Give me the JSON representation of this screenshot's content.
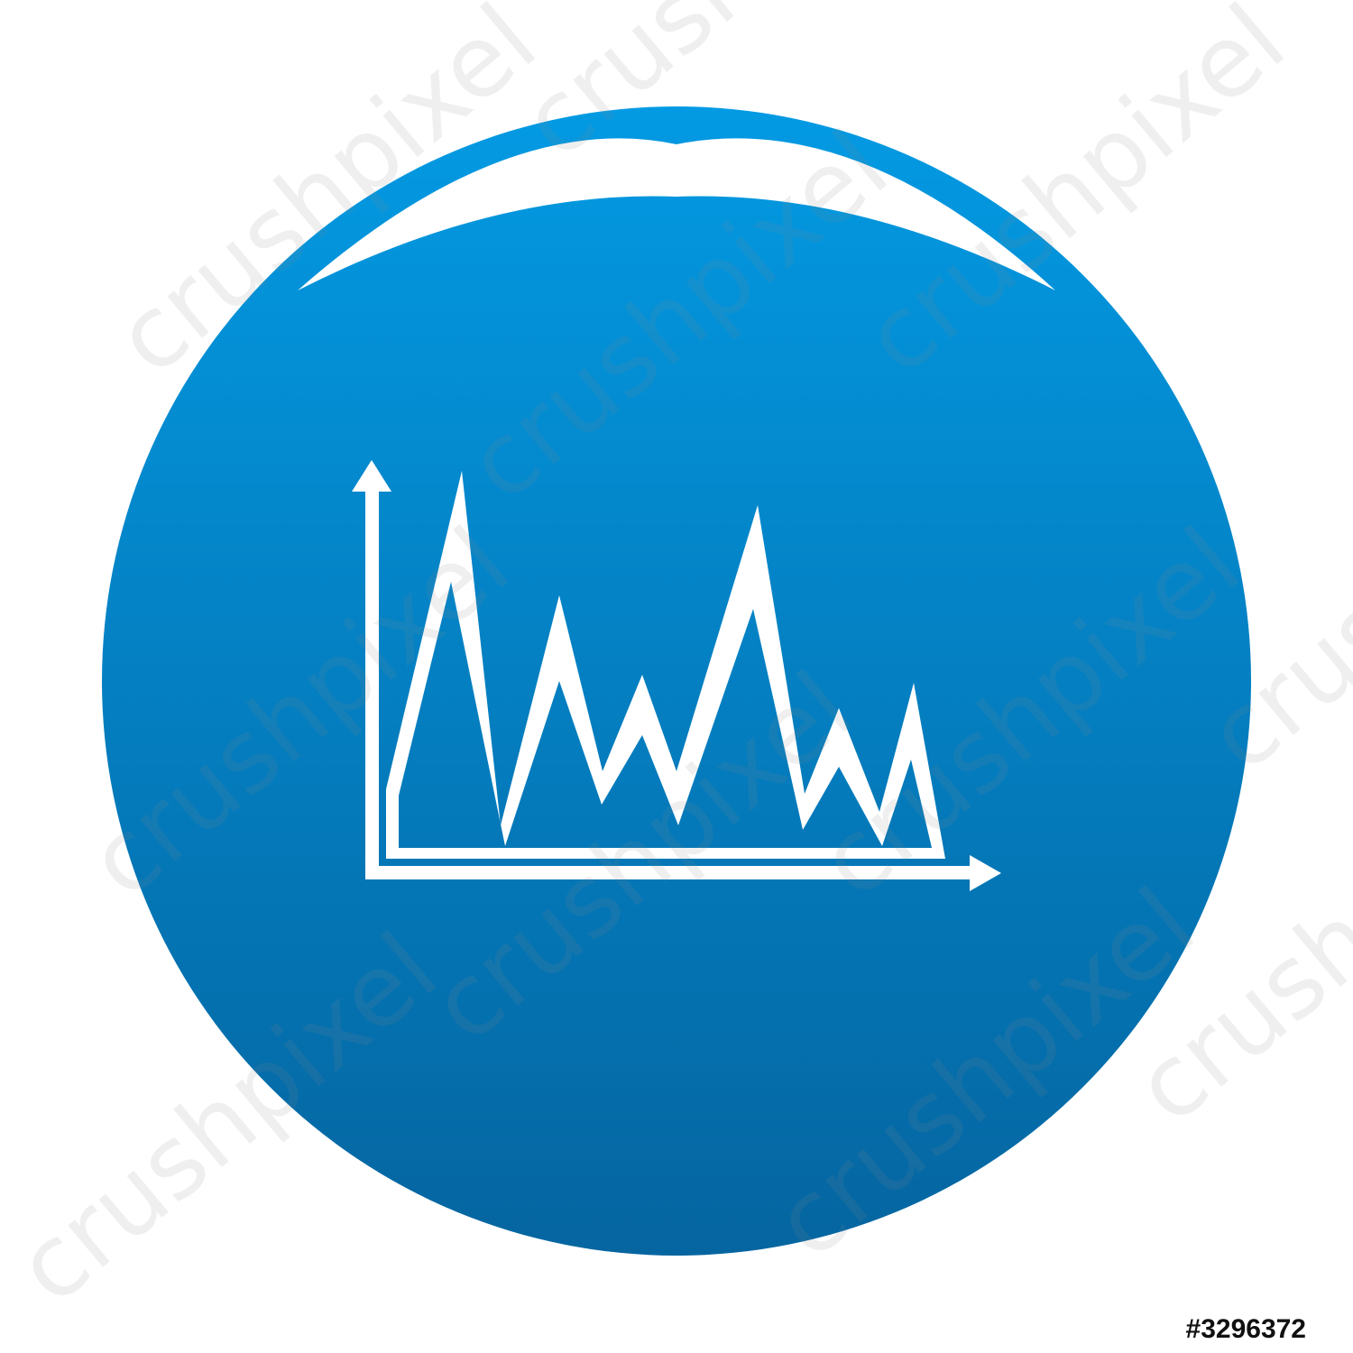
{
  "image_id": "#3296372",
  "watermark": "crushpixel"
}
